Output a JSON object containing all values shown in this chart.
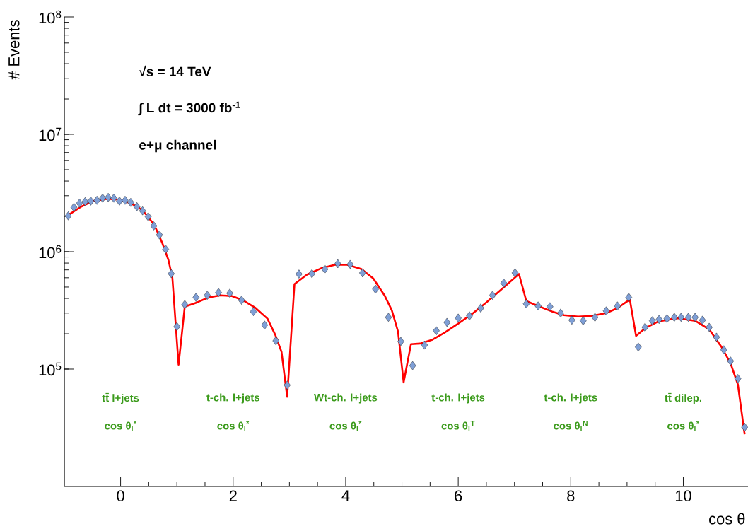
{
  "chart_data": {
    "type": "scatter",
    "xlabel": "cos θ",
    "ylabel": "# Events",
    "log": "y",
    "marker": "diamond",
    "xlim": [
      -1,
      11.15
    ],
    "ylim": [
      10000,
      100000000
    ],
    "xticks": [
      0,
      2,
      4,
      6,
      8,
      10
    ],
    "yticks": [
      {
        "value": 100000,
        "label": "10$^{5}$"
      },
      {
        "value": 1000000,
        "label": "10$^{6}$"
      },
      {
        "value": 10000000,
        "label": "10$^{7}$"
      },
      {
        "value": 100000000,
        "label": "10$^{8}$"
      }
    ],
    "annotations": [
      "√s = 14 TeV",
      "∫ L dt = 3000 fb$^{-1}$",
      "e+μ channel",
      "tt̄ l+jets",
      "cos θ$_{l}$$^{*}$",
      "t-ch. l+jets",
      "cos θ$_{l}$$^{*}$",
      "Wt-ch. l+jets",
      "cos θ$_{l}$$^{*}$",
      "t-ch. l+jets",
      "cos θ$_{l}$$^{T}$",
      "t-ch. l+jets",
      "cos θ$_{l}$$^{N}$",
      "tt̄ dilep.",
      "cos θ$_{l}$$^{*}$"
    ],
    "series": [
      {
        "color": "#7f9fd6",
        "x": [
          -0.93,
          -0.83,
          -0.73,
          -0.63,
          -0.53,
          -0.42,
          -0.32,
          -0.22,
          -0.12,
          -0.02,
          0.08,
          0.18,
          0.29,
          0.39,
          0.49,
          0.59,
          0.69,
          0.8,
          0.9,
          1.0,
          1.14,
          1.34,
          1.54,
          1.74,
          1.94,
          2.15,
          2.36,
          2.56,
          2.76,
          2.96,
          3.17,
          3.4,
          3.63,
          3.86,
          4.08,
          4.3,
          4.53,
          4.76,
          4.98,
          5.19,
          5.4,
          5.61,
          5.8,
          6.0,
          6.2,
          6.4,
          6.61,
          6.81,
          7.01,
          7.21,
          7.42,
          7.63,
          7.82,
          8.02,
          8.22,
          8.43,
          8.63,
          8.83,
          9.03,
          9.2,
          9.32,
          9.45,
          9.57,
          9.71,
          9.84,
          9.96,
          10.09,
          10.21,
          10.34,
          10.46,
          10.59,
          10.72,
          10.84,
          10.97,
          11.09
        ],
        "values": [
          2020000,
          2390000,
          2590000,
          2670000,
          2700000,
          2740000,
          2860000,
          2900000,
          2860000,
          2700000,
          2740000,
          2630000,
          2420000,
          2230000,
          1990000,
          1660000,
          1390000,
          1050000,
          650000,
          230000,
          355000,
          408000,
          425000,
          449000,
          443000,
          386000,
          309000,
          237000,
          174000,
          73000,
          645000,
          650000,
          710000,
          790000,
          780000,
          660000,
          480000,
          276000,
          172000,
          107000,
          160000,
          212000,
          250000,
          272000,
          284000,
          331000,
          425000,
          540000,
          660000,
          360000,
          345000,
          340000,
          300000,
          261000,
          258000,
          276000,
          313000,
          345000,
          408000,
          154000,
          227000,
          258000,
          265000,
          269000,
          276000,
          276000,
          276000,
          276000,
          261000,
          227000,
          187000,
          146000,
          117000,
          83000,
          32000
        ]
      },
      {
        "type": "line",
        "marker": "none",
        "color": "#ff0000",
        "x": [
          -0.92,
          -0.7,
          -0.49,
          -0.24,
          -0.03,
          0.18,
          0.39,
          0.6,
          0.74,
          0.85,
          0.92,
          1.03,
          1.14,
          1.36,
          1.56,
          1.77,
          1.98,
          2.18,
          2.4,
          2.61,
          2.75,
          2.86,
          2.96,
          3.09,
          3.31,
          3.56,
          3.81,
          4.03,
          4.28,
          4.49,
          4.69,
          4.82,
          4.93,
          5.03,
          5.16,
          5.32,
          5.53,
          5.75,
          6.0,
          6.25,
          6.5,
          6.75,
          7.08,
          7.21,
          7.45,
          7.67,
          7.88,
          8.13,
          8.38,
          8.63,
          8.83,
          9.05,
          9.16,
          9.33,
          9.55,
          9.89,
          10.21,
          10.46,
          10.68,
          10.84,
          10.97,
          11.09
        ],
        "values": [
          2070000,
          2420000,
          2700000,
          2820000,
          2780000,
          2590000,
          2260000,
          1690000,
          1190000,
          850000,
          600000,
          109000,
          340000,
          370000,
          407000,
          425000,
          419000,
          385000,
          331000,
          269000,
          195000,
          140000,
          58000,
          530000,
          637000,
          721000,
          773000,
          773000,
          711000,
          593000,
          425000,
          317000,
          209000,
          77000,
          163000,
          165000,
          177000,
          203000,
          244000,
          296000,
          370000,
          469000,
          646000,
          380000,
          340000,
          309000,
          288000,
          280000,
          284000,
          300000,
          331000,
          391000,
          192000,
          224000,
          254000,
          272000,
          258000,
          218000,
          154000,
          112000,
          74000,
          27800
        ]
      }
    ]
  }
}
